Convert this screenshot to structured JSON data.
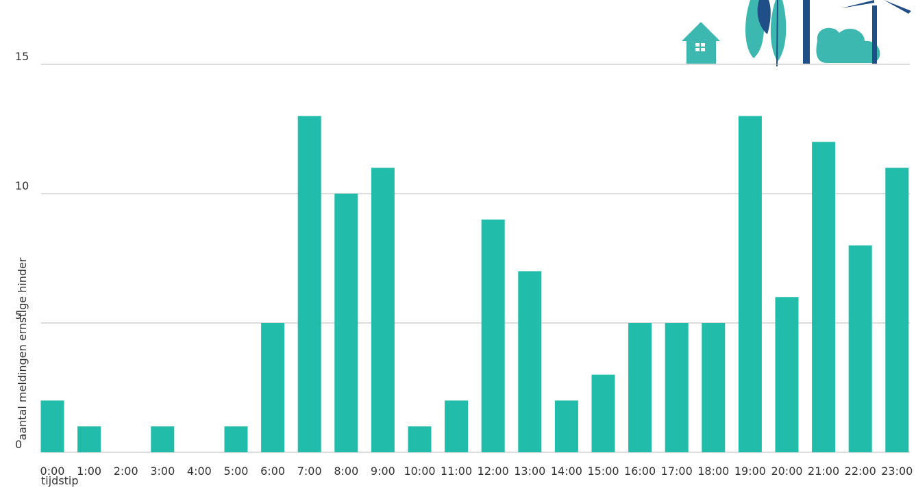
{
  "chart_data": {
    "type": "bar",
    "y_label": "aantal meldingen ernstige hinder",
    "x_label": "tijdstip",
    "categories": [
      "0:00",
      "1:00",
      "2:00",
      "3:00",
      "4:00",
      "5:00",
      "6:00",
      "7:00",
      "8:00",
      "9:00",
      "10:00",
      "11:00",
      "12:00",
      "13:00",
      "14:00",
      "15:00",
      "16:00",
      "17:00",
      "18:00",
      "19:00",
      "20:00",
      "21:00",
      "22:00",
      "23:00"
    ],
    "values": [
      2,
      1,
      0,
      1,
      0,
      1,
      5,
      13,
      10,
      11,
      1,
      2,
      9,
      7,
      2,
      3,
      5,
      5,
      5,
      13,
      6,
      12,
      8,
      11
    ],
    "color": "#22bcab",
    "ylim": [
      0,
      15
    ],
    "yticks": [
      0,
      5,
      10,
      15
    ],
    "grid": true
  }
}
